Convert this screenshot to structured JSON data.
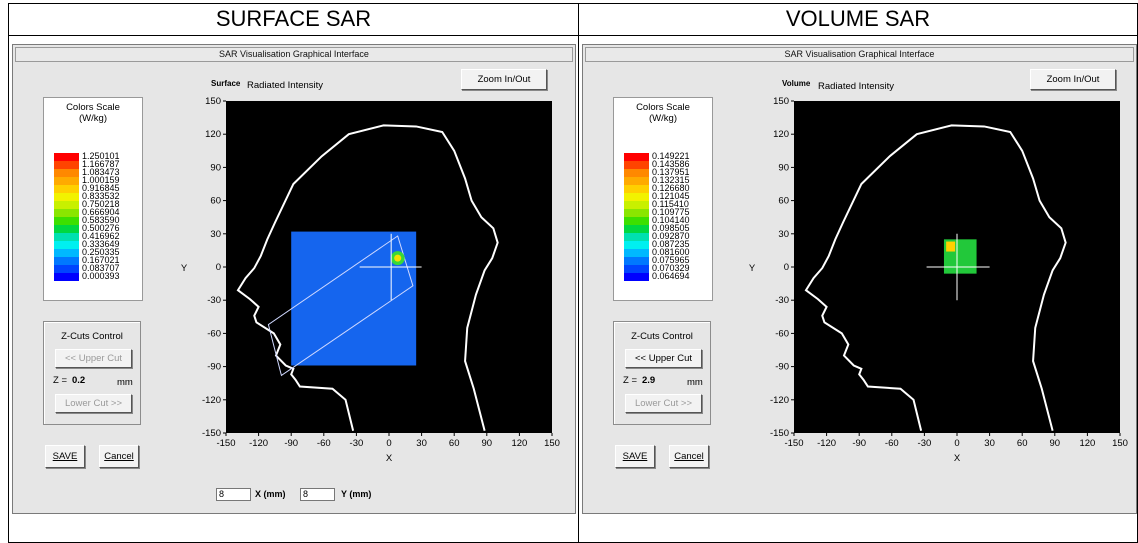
{
  "panels": [
    {
      "heading": "SURFACE SAR",
      "window_title": "SAR Visualisation Graphical Interface",
      "mode_label": "Surface",
      "intensity_label": "Radiated Intensity",
      "zoom_label": "Zoom In/Out",
      "scale_title_1": "Colors Scale",
      "scale_title_2": "(W/kg)",
      "scale_values": [
        "1.250101",
        "1.166787",
        "1.083473",
        "1.000159",
        "0.916845",
        "0.833532",
        "0.750218",
        "0.666904",
        "0.583590",
        "0.500276",
        "0.416962",
        "0.333649",
        "0.250335",
        "0.167021",
        "0.083707",
        "0.000393"
      ],
      "zcuts_title": "Z-Cuts Control",
      "upper_cut_label": "<< Upper Cut",
      "z_label": "Z =",
      "z_value": "0.2",
      "z_unit": "mm",
      "lower_cut_label": "Lower Cut >>",
      "save_label": "SAVE",
      "cancel_label": "Cancel",
      "x_input": "8",
      "x_unit_label": "X (mm)",
      "y_input": "8",
      "y_unit_label": "Y (mm)",
      "xlabel": "X",
      "ylabel": "Y",
      "upper_cut_enabled": false,
      "lower_cut_enabled": false
    },
    {
      "heading": "VOLUME SAR",
      "window_title": "SAR Visualisation Graphical Interface",
      "mode_label": "Volume",
      "intensity_label": "Radiated Intensity",
      "zoom_label": "Zoom In/Out",
      "scale_title_1": "Colors Scale",
      "scale_title_2": "(W/kg)",
      "scale_values": [
        "0.149221",
        "0.143586",
        "0.137951",
        "0.132315",
        "0.126680",
        "0.121045",
        "0.115410",
        "0.109775",
        "0.104140",
        "0.098505",
        "0.092870",
        "0.087235",
        "0.081600",
        "0.075965",
        "0.070329",
        "0.064694"
      ],
      "zcuts_title": "Z-Cuts Control",
      "upper_cut_label": "<< Upper Cut",
      "z_label": "Z =",
      "z_value": "2.9",
      "z_unit": "mm",
      "lower_cut_label": "Lower Cut >>",
      "save_label": "SAVE",
      "cancel_label": "Cancel",
      "xlabel": "X",
      "ylabel": "Y",
      "upper_cut_enabled": true,
      "lower_cut_enabled": false
    }
  ],
  "axis_ticks": {
    "x": [
      "-150",
      "-120",
      "-90",
      "-60",
      "-30",
      "0",
      "30",
      "60",
      "90",
      "120",
      "150"
    ],
    "y": [
      "150",
      "120",
      "90",
      "60",
      "30",
      "0",
      "-30",
      "-60",
      "-90",
      "-120",
      "-150"
    ]
  },
  "scale_colors": [
    "#ff0000",
    "#ff4400",
    "#ff8800",
    "#ffaa00",
    "#ffd000",
    "#f2f200",
    "#c8f000",
    "#8ae600",
    "#3ce000",
    "#00d840",
    "#00e0b0",
    "#00f0f0",
    "#00b8ff",
    "#0078ff",
    "#0044ff",
    "#0000ff"
  ]
}
